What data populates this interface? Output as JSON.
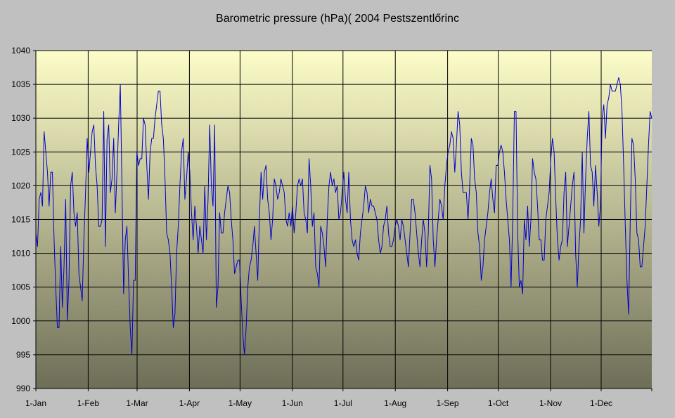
{
  "chart_data": {
    "type": "line",
    "title": "Barometric pressure (hPa)( 2004 Pestszentlőrinc",
    "xlabel": "",
    "ylabel": "",
    "ylim": [
      990,
      1040
    ],
    "yticks": [
      990,
      995,
      1000,
      1005,
      1010,
      1015,
      1020,
      1025,
      1030,
      1035,
      1040
    ],
    "xlim_days": [
      1,
      366
    ],
    "xticks": [
      {
        "label": "1-Jan",
        "day": 1
      },
      {
        "label": "1-Feb",
        "day": 32
      },
      {
        "label": "1-Mar",
        "day": 61
      },
      {
        "label": "1-Apr",
        "day": 92
      },
      {
        "label": "1-May",
        "day": 122
      },
      {
        "label": "1-Jun",
        "day": 153
      },
      {
        "label": "1-Jul",
        "day": 183
      },
      {
        "label": "1-Aug",
        "day": 214
      },
      {
        "label": "1-Sep",
        "day": 245
      },
      {
        "label": "1-Oct",
        "day": 275
      },
      {
        "label": "1-Nov",
        "day": 306
      },
      {
        "label": "1-Dec",
        "day": 336
      }
    ],
    "grid": true,
    "background_gradient": [
      "#fdfdc8",
      "#6e6e58"
    ],
    "line_color": "#0000cc",
    "series": [
      {
        "values": [
          1013,
          1011,
          1018,
          1019,
          1017,
          1028,
          1025,
          1022,
          1017,
          1022,
          1022,
          1012,
          1005,
          999,
          999,
          1011,
          1002,
          1008,
          1018,
          1000,
          1006,
          1020,
          1022,
          1016,
          1014,
          1016,
          1007,
          1005,
          1003,
          1012,
          1019,
          1027,
          1022,
          1025,
          1028,
          1029,
          1023,
          1020,
          1014,
          1014,
          1015,
          1031,
          1011,
          1027,
          1029,
          1019,
          1021,
          1027,
          1016,
          1022,
          1029,
          1035,
          1020,
          1004,
          1012,
          1014,
          1006,
          999,
          995,
          1006,
          1006,
          1025,
          1023,
          1024,
          1024,
          1030,
          1029,
          1023,
          1018,
          1025,
          1027,
          1027,
          1030,
          1032,
          1034,
          1034,
          1029,
          1027,
          1021,
          1013,
          1012,
          1010,
          1005,
          999,
          1001,
          1010,
          1014,
          1020,
          1025,
          1027,
          1018,
          1021,
          1025,
          1022,
          1016,
          1012,
          1017,
          1014,
          1010,
          1014,
          1012,
          1010,
          1020,
          1012,
          1018,
          1029,
          1020,
          1017,
          1029,
          1002,
          1005,
          1016,
          1013,
          1013,
          1016,
          1018,
          1020,
          1019,
          1015,
          1012,
          1007,
          1008,
          1009,
          1009,
          1003,
          998,
          995,
          999,
          1005,
          1008,
          1009,
          1011,
          1014,
          1010,
          1006,
          1015,
          1022,
          1018,
          1022,
          1023,
          1018,
          1016,
          1012,
          1015,
          1021,
          1020,
          1018,
          1019,
          1021,
          1020,
          1019,
          1015,
          1014,
          1016,
          1014,
          1017,
          1013,
          1016,
          1020,
          1021,
          1020,
          1021,
          1016,
          1015,
          1013,
          1024,
          1020,
          1014,
          1016,
          1008,
          1007,
          1005,
          1014,
          1013,
          1011,
          1008,
          1015,
          1020,
          1022,
          1020,
          1021,
          1019,
          1020,
          1015,
          1016,
          1019,
          1022,
          1018,
          1016,
          1022,
          1015,
          1012,
          1011,
          1012,
          1010,
          1009,
          1013,
          1015,
          1017,
          1020,
          1019,
          1016,
          1018,
          1017,
          1017,
          1016,
          1015,
          1012,
          1010,
          1011,
          1014,
          1015,
          1017,
          1013,
          1011,
          1011,
          1012,
          1014,
          1015,
          1014,
          1012,
          1015,
          1014,
          1012,
          1010,
          1008,
          1013,
          1018,
          1018,
          1016,
          1013,
          1010,
          1008,
          1012,
          1015,
          1013,
          1008,
          1013,
          1023,
          1021,
          1012,
          1008,
          1012,
          1015,
          1018,
          1017,
          1015,
          1020,
          1023,
          1025,
          1026,
          1028,
          1027,
          1022,
          1026,
          1031,
          1029,
          1022,
          1019,
          1019,
          1019,
          1015,
          1020,
          1027,
          1026,
          1021,
          1019,
          1013,
          1011,
          1006,
          1008,
          1012,
          1014,
          1016,
          1019,
          1021,
          1018,
          1016,
          1023,
          1023,
          1025,
          1026,
          1025,
          1022,
          1018,
          1015,
          1012,
          1005,
          1015,
          1031,
          1031,
          1013,
          1005,
          1006,
          1004,
          1015,
          1012,
          1017,
          1011,
          1015,
          1024,
          1022,
          1021,
          1017,
          1012,
          1012,
          1009,
          1009,
          1015,
          1017,
          1019,
          1024,
          1027,
          1025,
          1018,
          1012,
          1009,
          1011,
          1012,
          1019,
          1022,
          1011,
          1014,
          1017,
          1020,
          1022,
          1010,
          1005,
          1011,
          1015,
          1025,
          1013,
          1021,
          1027,
          1031,
          1023,
          1022,
          1017,
          1023,
          1019,
          1014,
          1017,
          1030,
          1032,
          1027,
          1032,
          1033,
          1035,
          1034,
          1034,
          1034,
          1035,
          1036,
          1035,
          1031,
          1023,
          1014,
          1006,
          1001,
          1015,
          1027,
          1026,
          1021,
          1013,
          1012,
          1008,
          1008,
          1011,
          1014,
          1020,
          1026,
          1031,
          1030
        ]
      }
    ]
  }
}
